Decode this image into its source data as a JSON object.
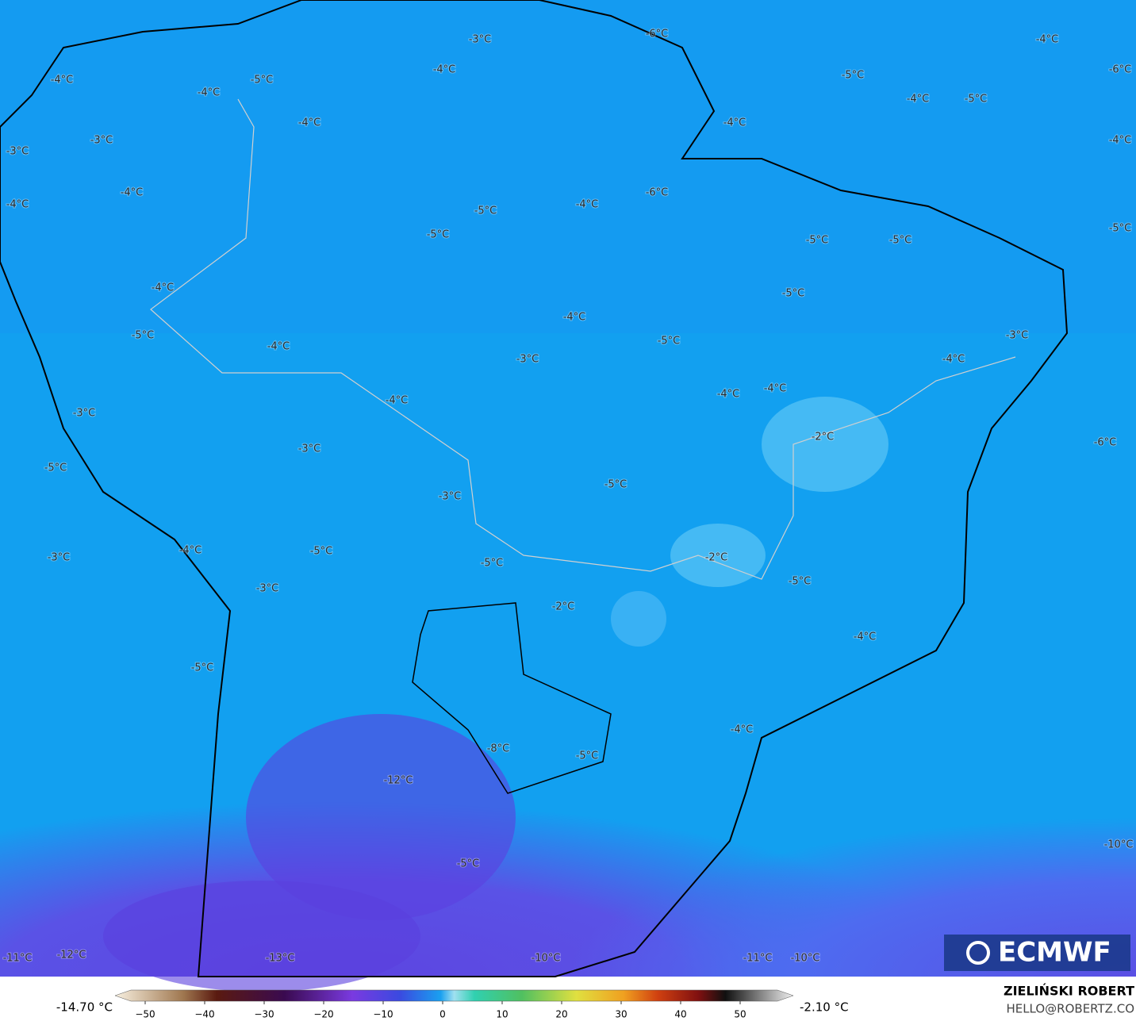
{
  "map": {
    "contour_labels": [
      "-6°C",
      "-3°C",
      "-4°C",
      "-4°C",
      "-5°C",
      "-6°C",
      "-4°C",
      "-5°C",
      "-4°C",
      "-4°C",
      "-5°C",
      "-4°C",
      "-4°C",
      "-3°C",
      "-4°C",
      "-3°C",
      "-4°C",
      "-6°C",
      "-4°C",
      "-4°C",
      "-5°C",
      "-5°C",
      "-5°C",
      "-5°C",
      "-5°C",
      "-4°C",
      "-5°C",
      "-4°C",
      "-5°C",
      "-3°C",
      "-4°C",
      "-5°C",
      "-3°C",
      "-4°C",
      "-4°C",
      "-4°C",
      "-4°C",
      "-3°C",
      "-2°C",
      "-6°C",
      "-3°C",
      "-5°C",
      "-5°C",
      "-3°C",
      "-4°C",
      "-5°C",
      "-2°C",
      "-3°C",
      "-5°C",
      "-5°C",
      "-3°C",
      "-2°C",
      "-4°C",
      "-5°C",
      "-4°C",
      "-8°C",
      "-5°C",
      "-12°C",
      "-10°C",
      "-5°C",
      "-12°C",
      "-11°C",
      "-13°C",
      "-10°C",
      "-11°C",
      "-10°C"
    ],
    "logo": "ECMWF"
  },
  "colorbar": {
    "min_label": "-14.70 °C",
    "max_label": "-2.10 °C",
    "ticks": [
      "−50",
      "−40",
      "−30",
      "−20",
      "−10",
      "0",
      "10",
      "20",
      "30",
      "40",
      "50"
    ]
  },
  "credit": {
    "author": "ZIELIŃSKI ROBERT",
    "email": "HELLO@ROBERTZ.CO"
  }
}
